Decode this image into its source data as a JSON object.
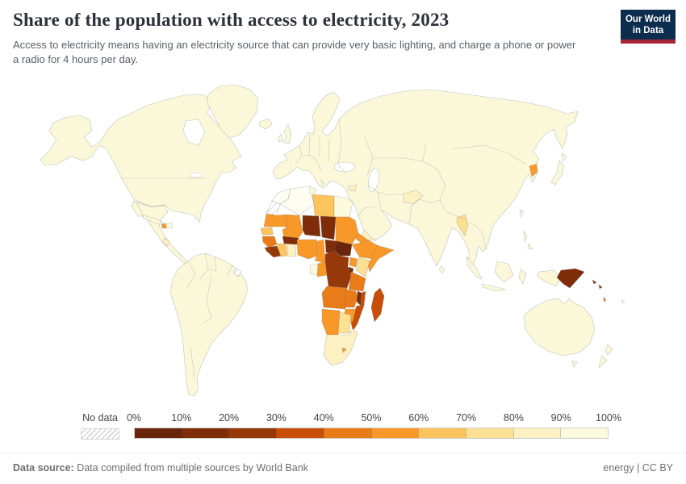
{
  "header": {
    "title": "Share of the population with access to electricity, 2023",
    "subtitle": "Access to electricity means having an electricity source that can provide very basic lighting, and charge a phone or power a radio for 4 hours per day.",
    "logo_line1": "Our World",
    "logo_line2": "in Data",
    "logo_bg": "#0d2d4e",
    "logo_accent": "#a52639"
  },
  "legend": {
    "no_data_label": "No data",
    "tick_labels": [
      "0%",
      "10%",
      "20%",
      "30%",
      "40%",
      "50%",
      "60%",
      "70%",
      "80%",
      "90%",
      "100%"
    ],
    "bins": [
      {
        "range": "0-10%",
        "color": "#68250A"
      },
      {
        "range": "10-20%",
        "color": "#7F2D08"
      },
      {
        "range": "20-30%",
        "color": "#96380A"
      },
      {
        "range": "30-40%",
        "color": "#C84D06"
      },
      {
        "range": "40-50%",
        "color": "#E97B18"
      },
      {
        "range": "50-60%",
        "color": "#F89828"
      },
      {
        "range": "60-70%",
        "color": "#FBC45D"
      },
      {
        "range": "70-80%",
        "color": "#FCE093"
      },
      {
        "range": "80-90%",
        "color": "#FDF0C2"
      },
      {
        "range": "90-100%",
        "color": "#FCFADC"
      }
    ]
  },
  "footer": {
    "source_label": "Data source:",
    "source_text": " Data compiled from multiple sources by World Bank",
    "right_text": "energy | CC BY"
  },
  "map": {
    "ocean_fill": "#FFFFFF",
    "land_fill": "#FBF8DA",
    "fills": {
      "b0": "#68250A",
      "b1": "#7F2D08",
      "b2": "#96380A",
      "b3": "#C84D06",
      "b4": "#E97B18",
      "b5": "#F89828",
      "b6": "#FBC45D",
      "b7": "#FCE093",
      "b8": "#FDF0C2",
      "b9": "#FCFADC",
      "full": "#FEFDF2"
    },
    "regions": {
      "morocco": "full",
      "western-sahara": "nodata",
      "algeria": "full",
      "tunisia": "b9",
      "libya": "b6",
      "egypt": "b9",
      "mauritania": "b5",
      "mali": "b5",
      "niger": "b1",
      "chad": "b1",
      "sudan": "b5",
      "eritrea": "b5",
      "senegal": "b6",
      "guinea": "b4",
      "sierra-leone-liberia": "b2",
      "cote-divoire": "b6",
      "ghana": "b8",
      "burkina-faso": "b1",
      "nigeria": "b5",
      "cameroon": "b5",
      "central-african-republic": "b1",
      "south-sudan": "b0",
      "ethiopia": "b5",
      "somalia": "b5",
      "kenya": "b7",
      "uganda": "b5",
      "rwanda-burundi": "b1",
      "dr-congo": "b2",
      "gabon": "b9",
      "congo": "b5",
      "tanzania": "b4",
      "angola": "b4",
      "zambia": "b4",
      "malawi": "b1",
      "mozambique": "b3",
      "zimbabwe": "b5",
      "namibia": "b5",
      "botswana": "b7",
      "south-africa": "b8",
      "lesotho": "b5",
      "madagascar": "b3",
      "haiti": "b5",
      "guatemala": "b8",
      "french-guiana": "nodata",
      "afghanistan": "b8",
      "myanmar": "b7",
      "north-korea": "b5",
      "syria": "b8",
      "yemen": "b8",
      "taiwan": "nodata",
      "papua-new-guinea": "b1",
      "solomon-islands": "b1",
      "vanuatu": "b4"
    }
  },
  "chart_data": {
    "type": "heatmap",
    "subtype": "world-choropleth-map",
    "title": "Share of the population with access to electricity, 2023",
    "unit": "%",
    "legend_position": "bottom",
    "axis_range": [
      0,
      100
    ],
    "no_data": {
      "label": "No data",
      "style": "white-diagonal-hatch"
    },
    "bins": [
      "0-10%",
      "10-20%",
      "20-30%",
      "30-40%",
      "40-50%",
      "50-60%",
      "60-70%",
      "70-80%",
      "80-90%",
      "90-100%"
    ],
    "regions_by_bin": {
      "0-10%": [
        "South Sudan"
      ],
      "10-20%": [
        "Chad",
        "Niger",
        "Burkina Faso",
        "Central African Republic",
        "Malawi",
        "Papua New Guinea",
        "Solomon Islands",
        "Rwanda/Burundi"
      ],
      "20-30%": [
        "Democratic Republic of Congo",
        "Sierra Leone",
        "Liberia"
      ],
      "30-40%": [
        "Mozambique",
        "Madagascar"
      ],
      "40-50%": [
        "Tanzania",
        "Angola",
        "Zambia",
        "Guinea",
        "Vanuatu"
      ],
      "50-60%": [
        "Nigeria",
        "Ethiopia",
        "Somalia",
        "Sudan",
        "Eritrea",
        "Mali",
        "Mauritania",
        "Cameroon",
        "Congo",
        "Uganda",
        "Zimbabwe",
        "Namibia",
        "Lesotho",
        "North Korea",
        "Haiti"
      ],
      "60-70%": [
        "Senegal",
        "Cote d'Ivoire",
        "Libya"
      ],
      "70-80%": [
        "Kenya",
        "Botswana",
        "Myanmar"
      ],
      "80-90%": [
        "Ghana",
        "South Africa",
        "Afghanistan",
        "Syria",
        "Yemen",
        "Guatemala"
      ],
      "90-100%": [
        "United States",
        "Canada",
        "Greenland",
        "Mexico",
        "Brazil",
        "Argentina",
        "most of South America",
        "Europe",
        "Russia",
        "China",
        "India",
        "Middle East",
        "Australia",
        "New Zealand",
        "Japan",
        "Indonesia",
        "Egypt",
        "Morocco",
        "Algeria",
        "Tunisia",
        "Gabon"
      ],
      "no_data": [
        "Western Sahara",
        "French Guiana",
        "Taiwan"
      ]
    }
  }
}
